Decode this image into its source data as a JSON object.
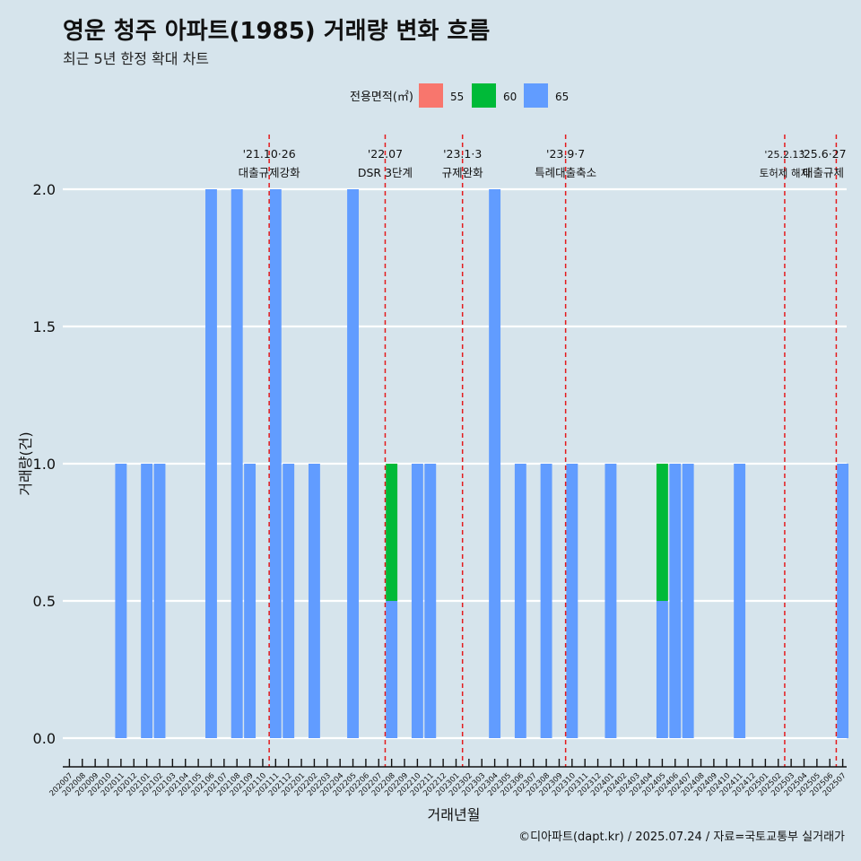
{
  "title": "영운 청주 아파트(1985) 거래량 변화 흐름",
  "subtitle": "최근 5년 한정 확대 차트",
  "caption": "©디아파트(dapt.kr) / 2025.07.24 / 자료=국토교통부 실거래가",
  "colors": {
    "background": "#d6e4ec",
    "grid": "#ffffff",
    "s55": "#f8766d",
    "s60": "#00ba38",
    "s65": "#619cff",
    "event_line": "#e41a1c"
  },
  "chart_data": {
    "type": "bar",
    "xlabel": "거래년월",
    "ylabel": "거래량(건)",
    "ylim": [
      0,
      2.2
    ],
    "yticks": [
      "0.0",
      "0.5",
      "1.0",
      "1.5",
      "2.0"
    ],
    "legend": {
      "title": "전용면적(㎡)",
      "position": "top"
    },
    "categories": [
      "202007",
      "202008",
      "202009",
      "202010",
      "202011",
      "202012",
      "202101",
      "202102",
      "202103",
      "202104",
      "202105",
      "202106",
      "202107",
      "202108",
      "202109",
      "202110",
      "202111",
      "202112",
      "202201",
      "202202",
      "202203",
      "202204",
      "202205",
      "202206",
      "202207",
      "202208",
      "202209",
      "202210",
      "202211",
      "202212",
      "202301",
      "202302",
      "202303",
      "202304",
      "202305",
      "202306",
      "202307",
      "202308",
      "202309",
      "202310",
      "202311",
      "202312",
      "202401",
      "202402",
      "202403",
      "202404",
      "202405",
      "202406",
      "202407",
      "202408",
      "202409",
      "202410",
      "202411",
      "202412",
      "202501",
      "202502",
      "202503",
      "202504",
      "202505",
      "202506",
      "202507"
    ],
    "series": [
      {
        "name": "55",
        "color": "#f8766d",
        "values": [
          0,
          0,
          0,
          0,
          0,
          0,
          0,
          0,
          0,
          0,
          0,
          0,
          0,
          0,
          0,
          0,
          0,
          0,
          0,
          0,
          0,
          0,
          0,
          0,
          0,
          0,
          0,
          0,
          0,
          0,
          0,
          0,
          0,
          0,
          0,
          0,
          0,
          0,
          0,
          0,
          0,
          0,
          0,
          0,
          0,
          0,
          0,
          0,
          0,
          0,
          0,
          0,
          0,
          0,
          0,
          0,
          0,
          0,
          0,
          0,
          0
        ]
      },
      {
        "name": "60",
        "color": "#00ba38",
        "values": [
          0,
          0,
          0,
          0,
          0,
          0,
          0,
          0,
          0,
          0,
          0,
          0,
          0,
          0,
          0,
          0,
          0,
          0,
          0,
          0,
          0,
          0,
          0,
          0,
          0,
          0.5,
          0,
          0,
          0,
          0,
          0,
          0,
          0,
          0,
          0,
          0,
          0,
          0,
          0,
          0,
          0,
          0,
          0,
          0,
          0,
          0,
          0.5,
          0,
          0,
          0,
          0,
          0,
          0,
          0,
          0,
          0,
          0,
          0,
          0,
          0,
          0
        ]
      },
      {
        "name": "65",
        "color": "#619cff",
        "values": [
          0,
          0,
          0,
          0,
          1,
          0,
          1,
          1,
          0,
          0,
          0,
          2,
          0,
          2,
          1,
          0,
          2,
          1,
          0,
          1,
          0,
          0,
          2,
          0,
          0,
          0.5,
          0,
          1,
          1,
          0,
          0,
          0,
          0,
          2,
          0,
          1,
          0,
          1,
          0,
          1,
          0,
          0,
          1,
          0,
          0,
          0,
          0.5,
          1,
          1,
          0,
          0,
          0,
          1,
          0,
          0,
          0,
          0,
          0,
          0,
          0,
          1
        ]
      }
    ],
    "events": [
      {
        "after": "202110",
        "date": "'21.10·26",
        "label": "대출규제강화"
      },
      {
        "after": "202207",
        "date": "'22.07",
        "label": "DSR 3단계"
      },
      {
        "after": "202301",
        "date": "'23.1·3",
        "label": "규제완화"
      },
      {
        "after": "202309",
        "date": "'23.9·7",
        "label": "특례대출축소"
      },
      {
        "after": "202502",
        "date": "'25.2.13",
        "label": "토허제 해제"
      },
      {
        "after": "202506",
        "date": "'25.6·27",
        "label": "대출규제"
      }
    ]
  }
}
